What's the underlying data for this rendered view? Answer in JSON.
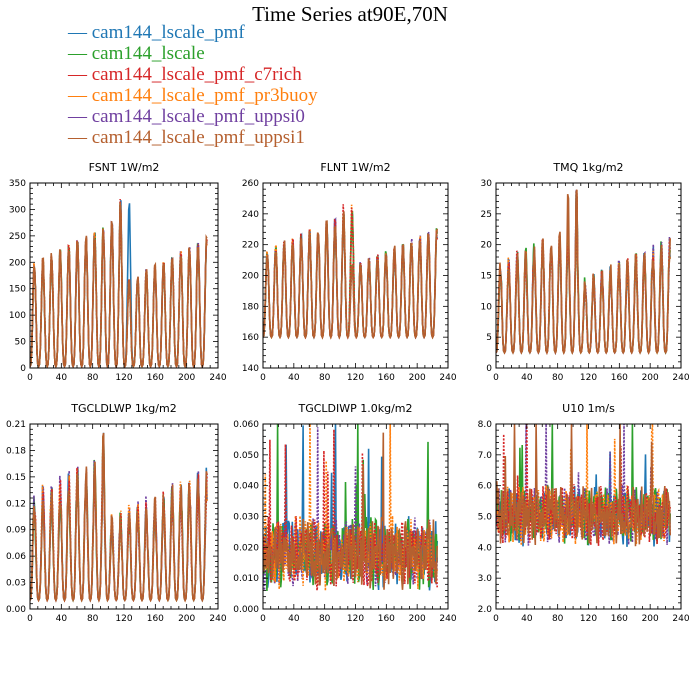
{
  "figure_title": "Time Series at90E,70N",
  "legend": [
    {
      "label": "cam144_lscale_pmf",
      "color": "#1f77b4"
    },
    {
      "label": "cam144_lscale",
      "color": "#2ca02c"
    },
    {
      "label": "cam144_lscale_pmf_c7rich",
      "color": "#d62728"
    },
    {
      "label": "cam144_lscale_pmf_pr3buoy",
      "color": "#ff7f0e"
    },
    {
      "label": "cam144_lscale_pmf_uppsi0",
      "color": "#7040a0"
    },
    {
      "label": "cam144_lscale_pmf_uppsi1",
      "color": "#b5602f"
    }
  ],
  "chart_data": [
    {
      "type": "line",
      "title": "FSNT   1W/m2",
      "xlim": [
        0,
        240
      ],
      "ylim": [
        0,
        350
      ],
      "xticks": [
        0,
        40,
        80,
        120,
        160,
        200,
        240
      ],
      "yticks": [
        0,
        50,
        100,
        150,
        200,
        250,
        300,
        350
      ],
      "ytick_decimals": 0,
      "series_shape": {
        "kind": "cycle",
        "base": 3,
        "amp": 250,
        "peak_max": 320,
        "period": 11,
        "noise": 0.08,
        "floor": 0,
        "ceil": 350
      }
    },
    {
      "type": "line",
      "title": "FLNT   1W/m2",
      "xlim": [
        0,
        240
      ],
      "ylim": [
        140,
        260
      ],
      "xticks": [
        0,
        40,
        80,
        120,
        160,
        200,
        240
      ],
      "yticks": [
        140,
        160,
        180,
        200,
        220,
        240,
        260
      ],
      "ytick_decimals": 0,
      "series_shape": {
        "kind": "cycle",
        "base": 160,
        "amp": 70,
        "peak_max": 252,
        "period": 11,
        "noise": 0.12,
        "floor": 142,
        "ceil": 258
      }
    },
    {
      "type": "line",
      "title": "TMQ   1kg/m2",
      "xlim": [
        0,
        240
      ],
      "ylim": [
        0,
        30
      ],
      "xticks": [
        0,
        40,
        80,
        120,
        160,
        200,
        240
      ],
      "yticks": [
        0,
        5,
        10,
        15,
        20,
        25,
        30
      ],
      "ytick_decimals": 0,
      "series_shape": {
        "kind": "cycle",
        "base": 2.5,
        "amp": 17,
        "peak_max": 29.5,
        "period": 11,
        "noise": 0.25,
        "floor": 1,
        "ceil": 30
      }
    },
    {
      "type": "line",
      "title": "TGCLDLWP   1kg/m2",
      "xlim": [
        0,
        240
      ],
      "ylim": [
        0,
        0.21
      ],
      "xticks": [
        0,
        40,
        80,
        120,
        160,
        200,
        240
      ],
      "yticks": [
        0,
        0.03,
        0.06,
        0.09,
        0.12,
        0.15,
        0.18,
        0.21
      ],
      "ytick_decimals": 2,
      "series_shape": {
        "kind": "cycle",
        "base": 0.01,
        "amp": 0.13,
        "peak_max": 0.2,
        "period": 11,
        "noise": 0.35,
        "floor": 0,
        "ceil": 0.21
      }
    },
    {
      "type": "line",
      "title": "TGCLDIWP   1.0kg/m2",
      "xlim": [
        0,
        240
      ],
      "ylim": [
        0,
        0.06
      ],
      "xticks": [
        0,
        40,
        80,
        120,
        160,
        200,
        240
      ],
      "yticks": [
        0,
        0.01,
        0.02,
        0.03,
        0.04,
        0.05,
        0.06
      ],
      "ytick_decimals": 3,
      "series_shape": {
        "kind": "noise",
        "base": 0.011,
        "amp": 0.012,
        "peak_max": 0.058,
        "period": 6,
        "noise": 0.9,
        "floor": 0.002,
        "ceil": 0.06
      }
    },
    {
      "type": "line",
      "title": "U10   1m/s",
      "xlim": [
        0,
        240
      ],
      "ylim": [
        2,
        8
      ],
      "xticks": [
        0,
        40,
        80,
        120,
        160,
        200,
        240
      ],
      "yticks": [
        2,
        3,
        4,
        5,
        6,
        7,
        8
      ],
      "ytick_decimals": 1,
      "series_shape": {
        "kind": "noise",
        "base": 4.4,
        "amp": 1.2,
        "peak_max": 8,
        "period": 5,
        "noise": 0.7,
        "floor": 2.8,
        "ceil": 8
      }
    }
  ]
}
